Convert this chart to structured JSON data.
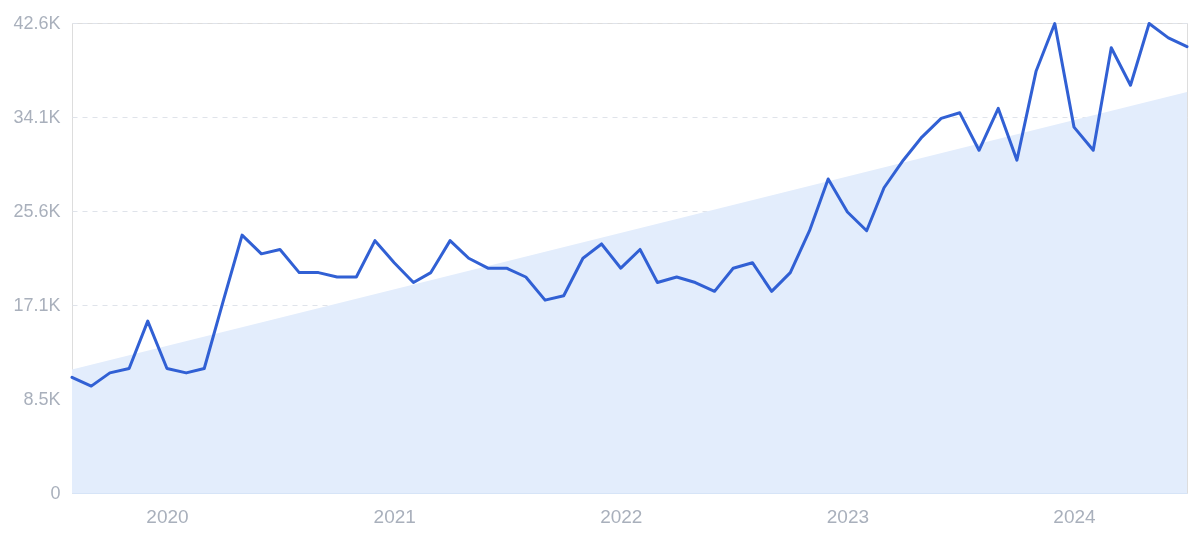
{
  "chart_data": {
    "type": "line",
    "x": [
      "2019-08",
      "2019-09",
      "2019-10",
      "2019-11",
      "2019-12",
      "2020-01",
      "2020-02",
      "2020-03",
      "2020-04",
      "2020-05",
      "2020-06",
      "2020-07",
      "2020-08",
      "2020-09",
      "2020-10",
      "2020-11",
      "2020-12",
      "2021-01",
      "2021-02",
      "2021-03",
      "2021-04",
      "2021-05",
      "2021-06",
      "2021-07",
      "2021-08",
      "2021-09",
      "2021-10",
      "2021-11",
      "2021-12",
      "2022-01",
      "2022-02",
      "2022-03",
      "2022-04",
      "2022-05",
      "2022-06",
      "2022-07",
      "2022-08",
      "2022-09",
      "2022-10",
      "2022-11",
      "2022-12",
      "2023-01",
      "2023-02",
      "2023-03",
      "2023-04",
      "2023-05",
      "2023-06",
      "2023-07",
      "2023-08",
      "2023-09",
      "2023-10",
      "2023-11",
      "2023-12",
      "2024-01",
      "2024-02",
      "2024-03",
      "2024-04",
      "2024-05",
      "2024-06",
      "2024-07"
    ],
    "series": [
      {
        "type": "area",
        "color": "#e3edfc",
        "x": [
          "2019-08",
          "2024-07"
        ],
        "values": [
          11200,
          36400
        ]
      },
      {
        "color": "#3160d4",
        "values": [
          10500,
          9700,
          10900,
          11300,
          15600,
          11300,
          10900,
          11300,
          17500,
          23400,
          21700,
          22100,
          20000,
          20000,
          19600,
          19600,
          22900,
          20900,
          19100,
          20000,
          22900,
          21300,
          20400,
          20400,
          19600,
          17500,
          17900,
          21300,
          22600,
          20400,
          22100,
          19100,
          19600,
          19100,
          18300,
          20400,
          20900,
          18300,
          20000,
          23800,
          28500,
          25500,
          23800,
          27700,
          30200,
          32300,
          34000,
          34500,
          31100,
          34900,
          30200,
          38300,
          42600,
          33200,
          31100,
          40400,
          37000,
          42600,
          41300,
          40500
        ]
      }
    ],
    "xlim": [
      "2019-08",
      "2024-07"
    ],
    "xticks": [
      {
        "value": "2020-01",
        "label": "2020"
      },
      {
        "value": "2021-01",
        "label": "2021"
      },
      {
        "value": "2022-01",
        "label": "2022"
      },
      {
        "value": "2023-01",
        "label": "2023"
      },
      {
        "value": "2024-01",
        "label": "2024"
      }
    ],
    "ylim": [
      0,
      42650
    ],
    "yticks": [
      0,
      {
        "value": 8530,
        "label": "8.5K"
      },
      {
        "value": 17060,
        "label": "17.1K"
      },
      {
        "value": 25590,
        "label": "25.6K"
      },
      {
        "value": 34120,
        "label": "34.1K"
      },
      {
        "value": 42650,
        "label": "42.6K"
      }
    ],
    "grid": "y",
    "marker": "none",
    "line_style": "solid"
  }
}
